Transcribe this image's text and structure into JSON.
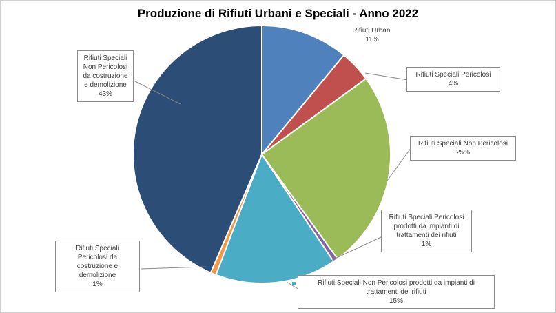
{
  "chart_data": {
    "type": "pie",
    "title": "Produzione di Rifiuti Urbani e Speciali - Anno 2022",
    "slices": [
      {
        "name": "Rifiuti Urbani",
        "value": 11,
        "value_label": "11%",
        "color": "#4f81bd",
        "label_lines": [
          "Rifiuti Urbani"
        ]
      },
      {
        "name": "Rifiuti Speciali Pericolosi",
        "value": 4,
        "value_label": "4%",
        "color": "#c0504d",
        "label_lines": [
          "Rifiuti Speciali Pericolosi"
        ]
      },
      {
        "name": "Rifiuti Speciali Non Pericolosi",
        "value": 25,
        "value_label": "25%",
        "color": "#9bbb59",
        "label_lines": [
          "Rifiuti Speciali Non Pericolosi"
        ]
      },
      {
        "name": "Rifiuti Speciali Pericolosi prodotti da impianti di trattamenti dei rifiuti",
        "value": 0.6,
        "value_label": "1%",
        "color": "#8064a2",
        "label_lines": [
          "Rifiuti Speciali Pericolosi",
          "prodotti da impianti di",
          "trattamenti dei rifiuti"
        ]
      },
      {
        "name": "Rifiuti Speciali Non Pericolosi prodotti da impianti di trattamenti dei rifiuti",
        "value": 15.2,
        "value_label": "15%",
        "color": "#4bacc6",
        "label_lines": [
          "Rifiuti Speciali Non Pericolosi prodotti da impianti di",
          "trattamenti dei rifiuti"
        ]
      },
      {
        "name": "Rifiuti Speciali Pericolosi da costruzione e demolizione",
        "value": 0.7,
        "value_label": "1%",
        "color": "#f79646",
        "label_lines": [
          "Rifiuti Speciali",
          "Pericolosi da",
          "costruzione e",
          "demolizione"
        ]
      },
      {
        "name": "Rifiuti Speciali Non Pericolosi da costruzione e demolizione",
        "value": 43.5,
        "value_label": "43%",
        "color": "#2c4d75",
        "label_lines": [
          "Rifiuti Speciali",
          "Non Pericolosi",
          "da costruzione",
          "e demolizione"
        ]
      }
    ]
  }
}
